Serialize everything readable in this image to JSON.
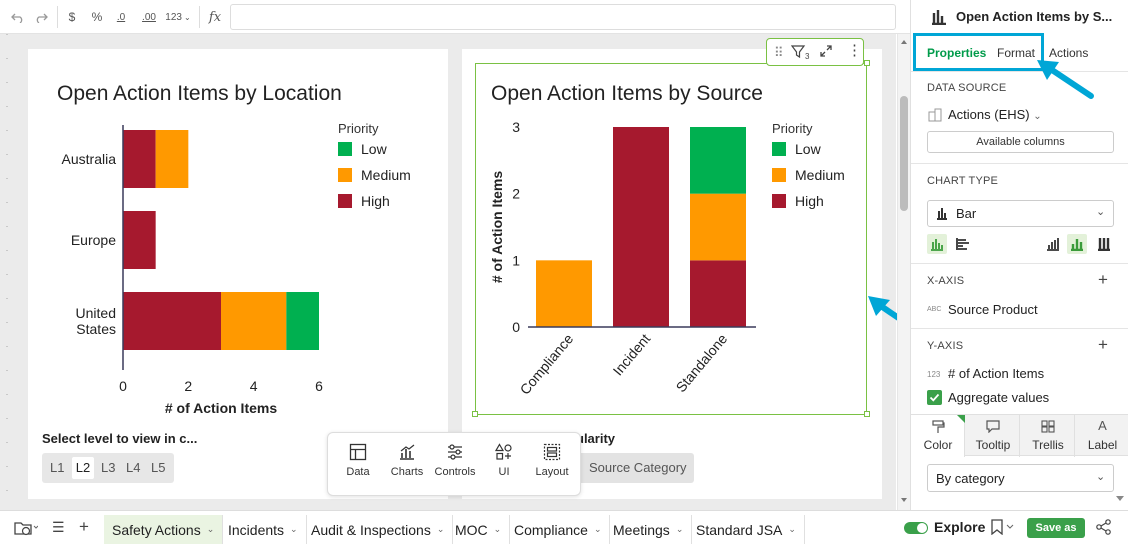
{
  "toolbar": {
    "undo_icon": "undo-icon",
    "redo_icon": "redo-icon",
    "currency": "$",
    "percent": "%",
    "decrease_decimal": ".0",
    "increase_decimal": ".00",
    "number_format": "123",
    "fx": "fx"
  },
  "colors": {
    "high": "#a6192e",
    "medium": "#ff9900",
    "low": "#00b050",
    "accent": "#009b4a",
    "highlight": "#00a6d6"
  },
  "chart_location": {
    "title": "Open Action Items by Location",
    "legend_title": "Priority",
    "legend": [
      "Low",
      "Medium",
      "High"
    ],
    "xlabel": "# of Action Items",
    "x_ticks": [
      "0",
      "2",
      "4",
      "6"
    ],
    "categories": [
      "Australia",
      "Europe",
      "United\nStates"
    ]
  },
  "chart_source": {
    "title": "Open Action Items by Source",
    "legend_title": "Priority",
    "legend": [
      "Low",
      "Medium",
      "High"
    ],
    "ylabel": "# of Action Items",
    "y_ticks": [
      "0",
      "1",
      "2",
      "3"
    ],
    "categories": [
      "Compliance",
      "Incident",
      "Standalone"
    ]
  },
  "chart_data": [
    {
      "type": "bar",
      "orientation": "horizontal",
      "stacked": true,
      "title": "Open Action Items by Location",
      "categories": [
        "Australia",
        "Europe",
        "United States"
      ],
      "series": [
        {
          "name": "High",
          "values": [
            1,
            1,
            3
          ]
        },
        {
          "name": "Medium",
          "values": [
            1,
            0,
            2
          ]
        },
        {
          "name": "Low",
          "values": [
            0,
            0,
            1
          ]
        }
      ],
      "xlabel": "# of Action Items",
      "ylabel": "",
      "xlim": [
        0,
        6
      ],
      "legend_title": "Priority",
      "legend_position": "right"
    },
    {
      "type": "bar",
      "orientation": "vertical",
      "stacked": true,
      "title": "Open Action Items by Source",
      "categories": [
        "Compliance",
        "Incident",
        "Standalone"
      ],
      "series": [
        {
          "name": "High",
          "values": [
            0,
            3,
            1
          ]
        },
        {
          "name": "Medium",
          "values": [
            1,
            0,
            1
          ]
        },
        {
          "name": "Low",
          "values": [
            0,
            0,
            1
          ]
        }
      ],
      "xlabel": "",
      "ylabel": "# of Action Items",
      "ylim": [
        0,
        3
      ],
      "legend_title": "Priority",
      "legend_position": "right"
    }
  ],
  "level_selector": {
    "label": "Select level to view in c...",
    "levels": [
      "L1",
      "L2",
      "L3",
      "L4",
      "L5"
    ],
    "selected": "L2"
  },
  "granularity": {
    "label": "ularity",
    "chip": "Source Category"
  },
  "floating_toolbar": [
    "Data",
    "Charts",
    "Controls",
    "UI",
    "Layout"
  ],
  "panel": {
    "title": "Open Action Items by S...",
    "tabs": [
      "Properties",
      "Format",
      "Actions"
    ],
    "data_source_label": "DATA SOURCE",
    "data_source_value": "Actions (EHS)",
    "available_columns": "Available columns",
    "chart_type_label": "CHART TYPE",
    "chart_type_value": "Bar",
    "x_axis_label": "X-AXIS",
    "x_axis_badge": "ABC",
    "x_axis_field": "Source Product",
    "y_axis_label": "Y-AXIS",
    "y_axis_badge": "123",
    "y_axis_field": "# of Action Items",
    "aggregate_label": "Aggregate values",
    "aggregate_checked": true,
    "format_tabs": [
      "Color",
      "Tooltip",
      "Trellis",
      "Label"
    ],
    "color_value": "By category"
  },
  "bottom": {
    "tabs": [
      "Safety Actions",
      "Incidents",
      "Audit & Inspections",
      "MOC",
      "Compliance",
      "Meetings",
      "Standard JSA"
    ],
    "active_tab": "Safety Actions",
    "explore_label": "Explore",
    "save_as": "Save as"
  }
}
